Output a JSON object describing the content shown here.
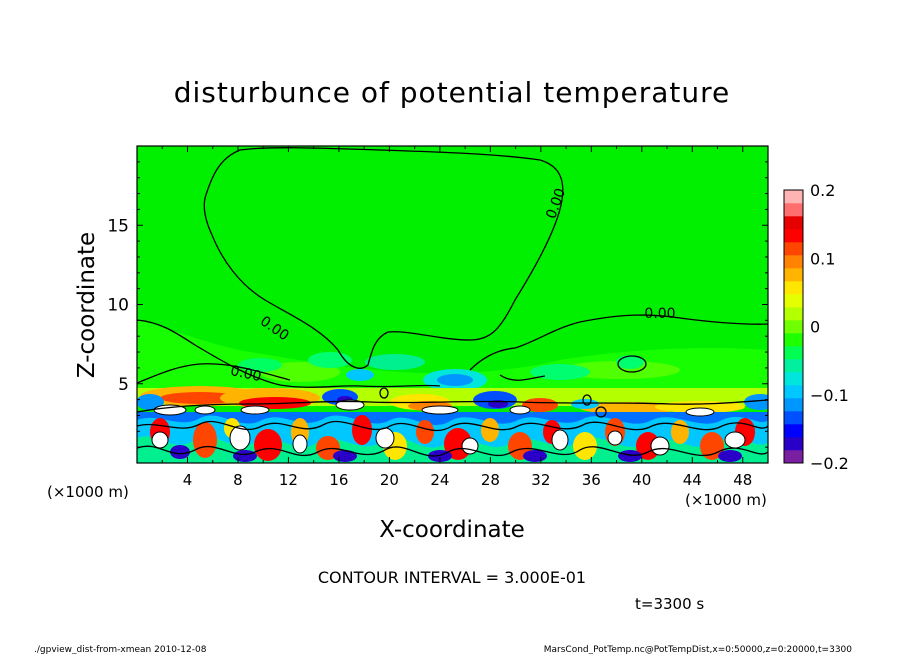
{
  "chart_data": {
    "type": "heatmap",
    "title": "disturbunce of potential temperature",
    "xlabel": "X-coordinate",
    "ylabel": "Z-coordinate",
    "x_unit": "(×1000 m)",
    "y_unit": "(×1000 m)",
    "xlim": [
      0,
      50
    ],
    "ylim": [
      0,
      20
    ],
    "x_ticks": [
      "4",
      "8",
      "12",
      "16",
      "20",
      "24",
      "28",
      "32",
      "36",
      "40",
      "44",
      "48"
    ],
    "y_ticks": [
      "5",
      "10",
      "15"
    ],
    "contour_labels": [
      "0.00",
      "0.00",
      "0.00",
      "0.00"
    ],
    "colorbar": {
      "min": -0.2,
      "max": 0.2,
      "tick_labels": [
        "0.2",
        "0.1",
        "0",
        "−0.1",
        "−0.2"
      ],
      "tick_values": [
        0.2,
        0.1,
        0,
        -0.1,
        -0.2
      ],
      "colors": [
        "#7b1fa2",
        "#2a00c8",
        "#0000ff",
        "#0050ff",
        "#0096ff",
        "#00c8ff",
        "#00e6dc",
        "#00f0a0",
        "#00ff50",
        "#20ff00",
        "#70ff00",
        "#b4ff00",
        "#e6ff00",
        "#ffe600",
        "#ffb400",
        "#ff8200",
        "#ff4600",
        "#ff0000",
        "#e60000",
        "#ff6e6e",
        "#ffb4b4"
      ]
    },
    "contour_interval_text": "CONTOUR INTERVAL = 3.000E-01",
    "time_text": "t=3300 s"
  },
  "footer": {
    "left": "./gpview_dist-from-xmean   2010-12-08",
    "right": "MarsCond_PotTemp.nc@PotTempDist,x=0:50000,z=0:20000,t=3300"
  }
}
